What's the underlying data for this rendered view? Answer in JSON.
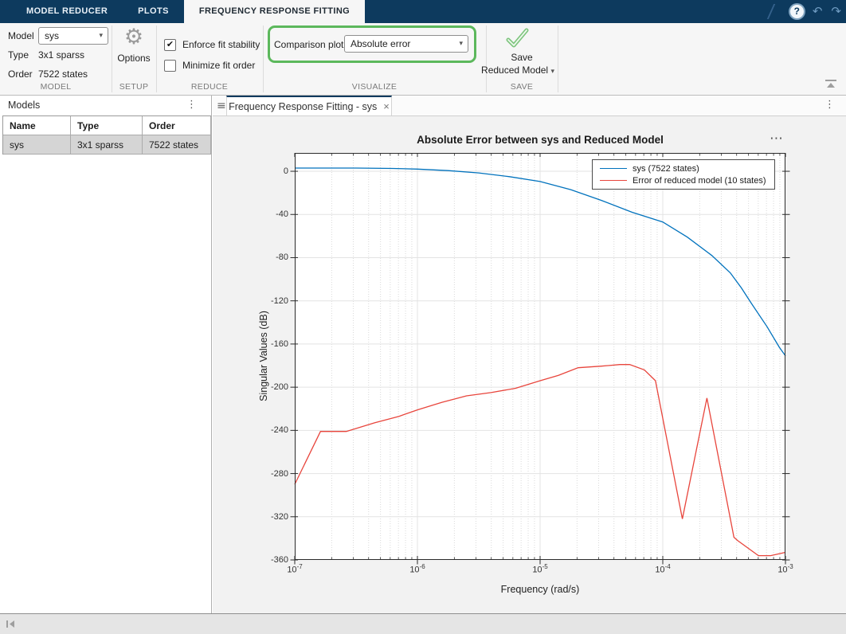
{
  "toolstrip": {
    "tabs": [
      {
        "label": "MODEL REDUCER",
        "active": false
      },
      {
        "label": "PLOTS",
        "active": false
      },
      {
        "label": "FREQUENCY RESPONSE FITTING",
        "active": true
      }
    ],
    "quick_access": {
      "help_icon": "?",
      "undo_icon": "↶",
      "redo_icon": "↷"
    }
  },
  "ribbon": {
    "model_section": {
      "title": "MODEL",
      "model_label": "Model",
      "model_value": "sys",
      "type_label": "Type",
      "type_value": "3x1 sparss",
      "order_label": "Order",
      "order_value": "7522 states"
    },
    "setup_section": {
      "title": "SETUP",
      "options_label": "Options"
    },
    "reduce_section": {
      "title": "REDUCE",
      "checkboxes": [
        {
          "label": "Enforce fit stability",
          "checked": true
        },
        {
          "label": "Minimize fit order",
          "checked": false
        }
      ]
    },
    "visualize_section": {
      "title": "VISUALIZE",
      "comparison_label": "Comparison plot",
      "comparison_value": "Absolute error",
      "highlight_color": "#5CB85C"
    },
    "save_section": {
      "title": "SAVE",
      "line1": "Save",
      "line2": "Reduced Model"
    }
  },
  "models_panel": {
    "title": "Models",
    "columns": [
      "Name",
      "Type",
      "Order"
    ],
    "rows": [
      {
        "cells": [
          "sys",
          "3x1 sparss",
          "7522 states"
        ],
        "selected": true
      }
    ]
  },
  "document": {
    "tab_label": "Frequency Response Fitting - sys"
  },
  "chart_data": {
    "type": "line",
    "title": "Absolute Error between sys and Reduced Model",
    "xlabel": "Frequency (rad/s)",
    "ylabel": "Singular Values (dB)",
    "x_scale": "log10",
    "xlim": [
      1e-07,
      0.001
    ],
    "xtick_exponents": [
      -7,
      -6,
      -5,
      -4,
      -3
    ],
    "ylim_bottom": -360,
    "ylim_top": 17,
    "yticks": [
      0,
      -40,
      -80,
      -120,
      -160,
      -200,
      -240,
      -280,
      -320,
      -360
    ],
    "grid": true,
    "legend_position": "northeast",
    "series": [
      {
        "name": "sys (7522 states)",
        "color": "#0072BD",
        "points_log10x_db": [
          [
            -7,
            3
          ],
          [
            -6.5,
            3
          ],
          [
            -6.2,
            2.6
          ],
          [
            -6,
            2
          ],
          [
            -5.75,
            0.6
          ],
          [
            -5.5,
            -1.5
          ],
          [
            -5.25,
            -5
          ],
          [
            -5,
            -9.5
          ],
          [
            -4.75,
            -17
          ],
          [
            -4.5,
            -27
          ],
          [
            -4.25,
            -38
          ],
          [
            -4,
            -47
          ],
          [
            -3.8,
            -61
          ],
          [
            -3.6,
            -78
          ],
          [
            -3.45,
            -94
          ],
          [
            -3.36,
            -108
          ],
          [
            -3.28,
            -122
          ],
          [
            -3.15,
            -144
          ],
          [
            -3.05,
            -163
          ],
          [
            -3,
            -171
          ]
        ]
      },
      {
        "name": "Error of reduced model (10 states)",
        "color": "#E8453C",
        "points_log10x_db": [
          [
            -7,
            -290
          ],
          [
            -6.79,
            -241
          ],
          [
            -6.58,
            -241
          ],
          [
            -6.35,
            -233
          ],
          [
            -6.15,
            -227
          ],
          [
            -6,
            -221
          ],
          [
            -5.8,
            -214
          ],
          [
            -5.6,
            -208
          ],
          [
            -5.4,
            -205
          ],
          [
            -5.2,
            -201
          ],
          [
            -5,
            -194
          ],
          [
            -4.85,
            -189
          ],
          [
            -4.69,
            -182
          ],
          [
            -4.5,
            -180.5
          ],
          [
            -4.35,
            -179
          ],
          [
            -4.27,
            -179
          ],
          [
            -4.15,
            -184
          ],
          [
            -4.06,
            -194
          ],
          [
            -3.84,
            -322
          ],
          [
            -3.64,
            -210
          ],
          [
            -3.42,
            -339
          ],
          [
            -3.39,
            -342
          ],
          [
            -3.22,
            -356
          ],
          [
            -3.12,
            -356
          ],
          [
            -3,
            -353
          ]
        ]
      }
    ]
  },
  "icons": {
    "ellipsis": "⋯",
    "close": "×",
    "caret": "▾",
    "check": "✔",
    "menu_dots": "⋮",
    "hamburger": "≡"
  }
}
